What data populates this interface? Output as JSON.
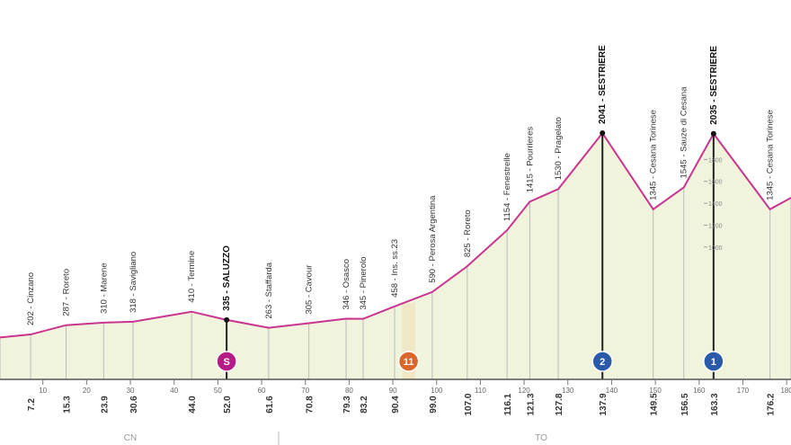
{
  "chart_data": {
    "type": "area",
    "x": [
      0.2,
      7.2,
      15.3,
      23.9,
      30.6,
      44.0,
      52.0,
      61.6,
      70.8,
      79.3,
      83.2,
      90.4,
      99.0,
      107.0,
      116.1,
      121.3,
      127.8,
      137.9,
      149.5,
      156.5,
      163.3,
      176.2,
      181.0
    ],
    "x_labels": [
      null,
      "7.2",
      "15.3",
      "23.9",
      "30.6",
      "44.0",
      "52.0",
      "61.6",
      "70.8",
      "79.3",
      "83.2",
      "90.4",
      "99.0",
      "107.0",
      "116.1",
      "121.3",
      "127.8",
      "137.9",
      "149.5",
      "156.5",
      "163.3",
      "176.2",
      null
    ],
    "values": [
      175,
      202,
      287,
      310,
      318,
      410,
      335,
      263,
      305,
      346,
      345,
      458,
      590,
      825,
      1154,
      1415,
      1530,
      2041,
      1345,
      1545,
      2035,
      1345,
      1450
    ],
    "value_labels": [
      null,
      "202 - Cinzano",
      "287 - Roreto",
      "310 - Marene",
      "318 - Savigliano",
      "410 - Termine",
      "335 - SALUZZO",
      "263 - Staffarda",
      "305 - Cavour",
      "346 - Osasco",
      "345 - Pinerolo",
      "458 - Ins. ss.23",
      "590 - Perosa Argentina",
      "825 - Roreto",
      "1154 - Fenestrelle",
      "1415 - Pourrieres",
      "1530 - Pragelato",
      "2041 - SESTRIERE",
      "1345 - Cesana Torinese",
      "1545 - Sauze di Cesana",
      "2035 - SESTRIERE",
      "1345 - Cesana Torinese",
      null
    ],
    "bold_labels": [
      false,
      false,
      false,
      false,
      false,
      false,
      true,
      false,
      false,
      false,
      false,
      false,
      false,
      false,
      false,
      false,
      false,
      true,
      false,
      false,
      true,
      false,
      false
    ],
    "color": "#c9348f",
    "fill": "#eef2d6",
    "xlim": [
      0.2,
      181.0
    ],
    "ylim": [
      -208,
      3256
    ],
    "xticks": [
      10,
      20,
      30,
      40,
      50,
      60,
      70,
      80,
      90,
      100,
      110,
      120,
      130,
      140,
      150,
      160,
      170,
      180
    ],
    "yticks": [
      1000,
      1200,
      1400,
      1600,
      1800
    ],
    "markers": [
      {
        "km": 52.0,
        "label": "S",
        "color": "#b51c86"
      },
      {
        "km": 93.6,
        "label": "11",
        "color": "#d9662a"
      },
      {
        "km": 137.9,
        "label": "2",
        "color": "#2a5aa8"
      },
      {
        "km": 163.3,
        "label": "1",
        "color": "#2a5aa8"
      }
    ],
    "band": {
      "from": 92.1,
      "to": 95.1,
      "color": "#f2a66a"
    },
    "regions": [
      "CN",
      "TO"
    ]
  }
}
